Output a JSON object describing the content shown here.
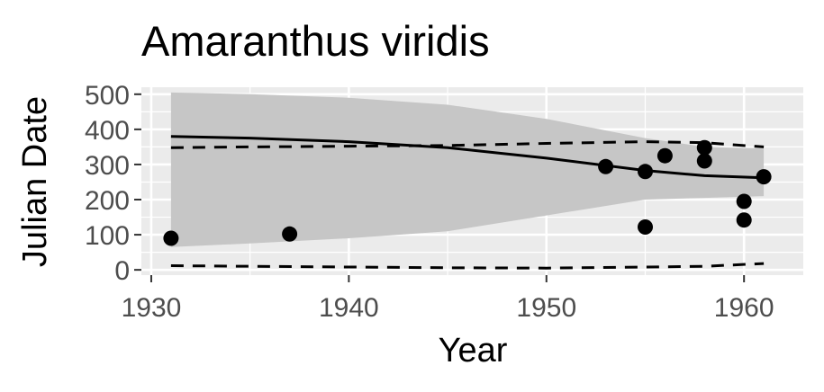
{
  "chart_data": {
    "type": "scatter",
    "title": "Amaranthus viridis",
    "xlabel": "Year",
    "ylabel": "Julian Date",
    "xlim": [
      1929.5,
      1963
    ],
    "ylim": [
      -15,
      520
    ],
    "x_ticks": [
      1930,
      1940,
      1950,
      1960
    ],
    "y_ticks": [
      0,
      100,
      200,
      300,
      400,
      500
    ],
    "grid": true,
    "legend": "none",
    "points": [
      {
        "x": 1931,
        "y": 90
      },
      {
        "x": 1937,
        "y": 102
      },
      {
        "x": 1953,
        "y": 294
      },
      {
        "x": 1955,
        "y": 280
      },
      {
        "x": 1955,
        "y": 122
      },
      {
        "x": 1956,
        "y": 325
      },
      {
        "x": 1958,
        "y": 348
      },
      {
        "x": 1958,
        "y": 310
      },
      {
        "x": 1960,
        "y": 195
      },
      {
        "x": 1960,
        "y": 142
      },
      {
        "x": 1961,
        "y": 265
      }
    ],
    "trend_line": {
      "x": [
        1931,
        1935,
        1940,
        1945,
        1950,
        1955,
        1958,
        1961
      ],
      "y": [
        380,
        375,
        365,
        348,
        318,
        283,
        268,
        262
      ]
    },
    "confidence_band": {
      "x": [
        1931,
        1935,
        1940,
        1945,
        1950,
        1955,
        1958,
        1961
      ],
      "upper": [
        505,
        500,
        490,
        470,
        430,
        375,
        350,
        345
      ],
      "lower": [
        65,
        75,
        90,
        110,
        155,
        200,
        205,
        210
      ]
    },
    "dashed_upper": {
      "x": [
        1931,
        1935,
        1940,
        1945,
        1950,
        1955,
        1958,
        1961
      ],
      "y": [
        348,
        350,
        352,
        354,
        360,
        365,
        362,
        350
      ]
    },
    "dashed_lower": {
      "x": [
        1931,
        1935,
        1940,
        1945,
        1950,
        1955,
        1958,
        1961
      ],
      "y": [
        12,
        10,
        8,
        6,
        5,
        8,
        10,
        18
      ]
    },
    "colors": {
      "panel": "#ebebeb",
      "grid_major": "#ffffff",
      "band": "#c6c6c6",
      "points": "#000000",
      "line": "#000000"
    }
  }
}
